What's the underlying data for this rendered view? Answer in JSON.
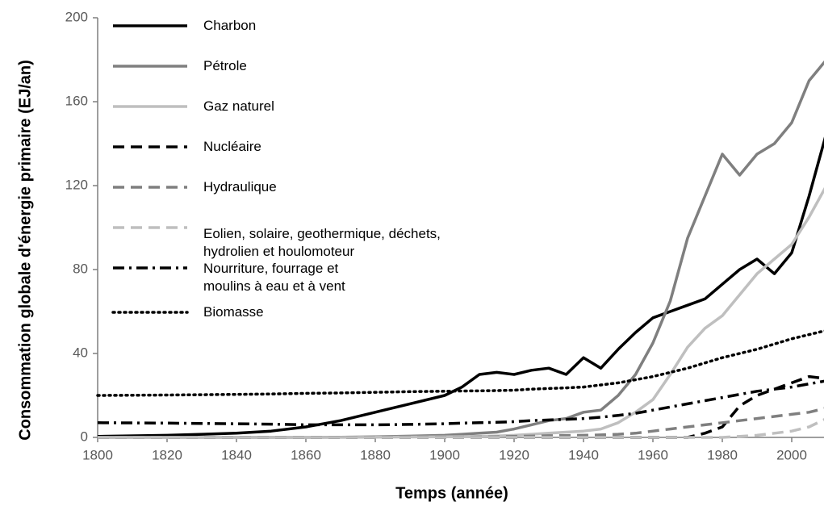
{
  "chart_data": {
    "type": "line",
    "y_label": "Consommation globale d'énergie primaire (EJ/an)",
    "x_label": "Temps (année)",
    "x": [
      1800,
      1820,
      1840,
      1850,
      1860,
      1870,
      1880,
      1890,
      1900,
      1905,
      1910,
      1915,
      1920,
      1925,
      1930,
      1935,
      1940,
      1945,
      1950,
      1955,
      1960,
      1965,
      1970,
      1975,
      1980,
      1985,
      1990,
      1995,
      2000,
      2005,
      2010
    ],
    "xlim": [
      1800,
      2010
    ],
    "xticks": [
      1800,
      1820,
      1840,
      1860,
      1880,
      1900,
      1920,
      1940,
      1960,
      1980,
      2000
    ],
    "ylim": [
      0,
      200
    ],
    "yticks": [
      0,
      40,
      80,
      120,
      160,
      200
    ],
    "legend": "upper left",
    "series": [
      {
        "name": "Charbon",
        "color": "#000000",
        "linestyle": "solid",
        "values": [
          0.5,
          1,
          2,
          3,
          5,
          8,
          12,
          16,
          20,
          24,
          30,
          31,
          30,
          32,
          33,
          30,
          38,
          33,
          42,
          50,
          57,
          60,
          63,
          66,
          73,
          80,
          85,
          78,
          88,
          115,
          145
        ]
      },
      {
        "name": "Pétrole",
        "color": "#7f7f7f",
        "linestyle": "solid",
        "values": [
          0,
          0,
          0,
          0,
          0,
          0.1,
          0.3,
          0.6,
          1,
          1.5,
          2,
          2.5,
          4,
          6,
          8,
          9,
          12,
          13,
          20,
          30,
          45,
          65,
          95,
          115,
          135,
          125,
          135,
          140,
          150,
          170,
          180
        ]
      },
      {
        "name": "Gaz naturel",
        "color": "#bfbfbf",
        "linestyle": "solid",
        "values": [
          0,
          0,
          0,
          0,
          0,
          0,
          0.1,
          0.2,
          0.3,
          0.4,
          0.5,
          0.7,
          1,
          1.5,
          2,
          2.5,
          3,
          4,
          7,
          12,
          18,
          30,
          43,
          52,
          58,
          68,
          78,
          85,
          92,
          105,
          120
        ]
      },
      {
        "name": "Nucléaire",
        "color": "#000000",
        "linestyle": "dashed",
        "values": [
          0,
          0,
          0,
          0,
          0,
          0,
          0,
          0,
          0,
          0,
          0,
          0,
          0,
          0,
          0,
          0,
          0,
          0,
          0,
          0,
          0,
          0,
          0,
          2,
          5,
          15,
          20,
          23,
          26,
          29,
          28
        ]
      },
      {
        "name": "Hydraulique",
        "color": "#7f7f7f",
        "linestyle": "dashed",
        "values": [
          0,
          0,
          0,
          0,
          0,
          0,
          0,
          0,
          0,
          0.1,
          0.2,
          0.3,
          0.5,
          0.6,
          0.8,
          0.9,
          1,
          1.2,
          1.5,
          2,
          3,
          4,
          5,
          6,
          7,
          8,
          9,
          10,
          11,
          12,
          14
        ]
      },
      {
        "name": "Eolien, solaire, geothermique, déchets,\nhydrolien et houlomoteur",
        "color": "#bfbfbf",
        "linestyle": "dashed",
        "values": [
          0,
          0,
          0,
          0,
          0,
          0,
          0,
          0,
          0,
          0,
          0,
          0,
          0,
          0,
          0,
          0,
          0,
          0,
          0,
          0,
          0,
          0,
          0,
          0,
          0,
          0.5,
          1,
          2,
          3,
          5,
          9
        ]
      },
      {
        "name": "Nourriture, fourrage et\nmoulins à eau et à vent",
        "color": "#000000",
        "linestyle": "dashdot",
        "values": [
          7,
          6.8,
          6.5,
          6.3,
          6,
          6,
          6,
          6.2,
          6.5,
          6.8,
          7,
          7.2,
          7.5,
          8,
          8.3,
          8.6,
          9,
          9.6,
          10.5,
          11.5,
          13,
          14.5,
          16,
          17.5,
          19,
          20.5,
          22,
          23,
          24,
          25.5,
          27
        ]
      },
      {
        "name": "Biomasse",
        "color": "#000000",
        "linestyle": "dotted",
        "values": [
          20,
          20.2,
          20.5,
          20.7,
          21,
          21.2,
          21.5,
          21.8,
          22,
          22.1,
          22.2,
          22.3,
          22.5,
          23,
          23.3,
          23.6,
          24,
          25,
          26,
          27.5,
          29,
          31,
          33,
          35.5,
          38,
          40,
          42,
          44.5,
          47,
          49,
          51
        ]
      }
    ]
  }
}
